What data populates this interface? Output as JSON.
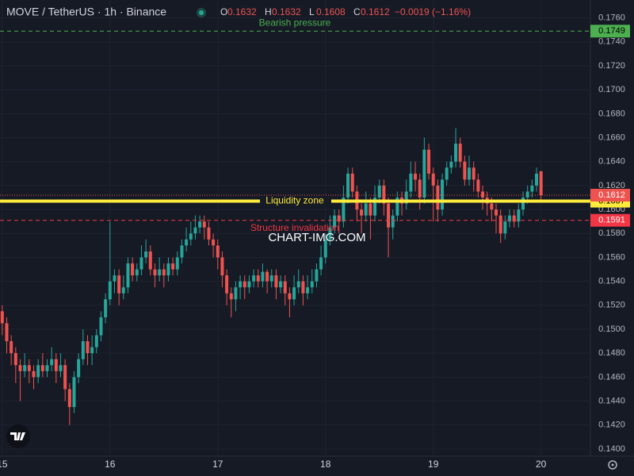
{
  "chart_data": {
    "type": "candlestick",
    "header": {
      "title": "MOVE / TetherUS · 1h · Binance",
      "ohlc_labels": [
        "O",
        "H",
        "L",
        "C"
      ],
      "change": "−0.0019 (−1.16%)"
    },
    "watermark": "CHART-IMG.COM",
    "up_color": "#26a69a",
    "down_color": "#ef5350",
    "grid": true,
    "xlim": [
      -0.5,
      131
    ],
    "ylim": [
      0.1394,
      0.1775
    ],
    "xticks": [
      {
        "value": 0,
        "label": "15"
      },
      {
        "value": 24,
        "label": "16"
      },
      {
        "value": 48,
        "label": "17"
      },
      {
        "value": 72,
        "label": "18"
      },
      {
        "value": 96,
        "label": "19"
      },
      {
        "value": 120,
        "label": "20"
      }
    ],
    "yticks": [
      {
        "value": 0.14,
        "label": "0.1400"
      },
      {
        "value": 0.142,
        "label": "0.1420"
      },
      {
        "value": 0.144,
        "label": "0.1440"
      },
      {
        "value": 0.146,
        "label": "0.1460"
      },
      {
        "value": 0.148,
        "label": "0.1480"
      },
      {
        "value": 0.15,
        "label": "0.1500"
      },
      {
        "value": 0.152,
        "label": "0.1520"
      },
      {
        "value": 0.154,
        "label": "0.1540"
      },
      {
        "value": 0.156,
        "label": "0.1560"
      },
      {
        "value": 0.158,
        "label": "0.1580"
      },
      {
        "value": 0.16,
        "label": "0.1600"
      },
      {
        "value": 0.162,
        "label": "0.1620"
      },
      {
        "value": 0.164,
        "label": "0.1640"
      },
      {
        "value": 0.166,
        "label": "0.1660"
      },
      {
        "value": 0.168,
        "label": "0.1680"
      },
      {
        "value": 0.17,
        "label": "0.1700"
      },
      {
        "value": 0.172,
        "label": "0.1720"
      },
      {
        "value": 0.174,
        "label": "0.1740"
      },
      {
        "value": 0.176,
        "label": "0.1760"
      }
    ],
    "levels": [
      {
        "label": "Bearish pressure",
        "value": 0.1749,
        "color": "#4caf50",
        "style": "dashed",
        "position": "above"
      },
      {
        "label": "Liquidity zone",
        "value": 0.1607,
        "color": "#ffeb3b",
        "style": "thick",
        "position": "on"
      },
      {
        "label": "Structure invalidation",
        "value": 0.1591,
        "color": "#f23645",
        "style": "dashed",
        "position": "below"
      }
    ],
    "open": [
      0.1515,
      0.1505,
      0.149,
      0.148,
      0.147,
      0.1465,
      0.147,
      0.1465,
      0.146,
      0.147,
      0.1465,
      0.147,
      0.1475,
      0.1465,
      0.147,
      0.145,
      0.1435,
      0.146,
      0.1475,
      0.149,
      0.148,
      0.1485,
      0.1495,
      0.151,
      0.1525,
      0.154,
      0.1545,
      0.153,
      0.1535,
      0.1555,
      0.1545,
      0.155,
      0.156,
      0.1565,
      0.155,
      0.1545,
      0.155,
      0.1545,
      0.1555,
      0.155,
      0.156,
      0.157,
      0.1575,
      0.158,
      0.1585,
      0.159,
      0.1585,
      0.1575,
      0.157,
      0.156,
      0.1545,
      0.153,
      0.1525,
      0.1535,
      0.154,
      0.1535,
      0.154,
      0.1545,
      0.154,
      0.1548,
      0.154,
      0.1545,
      0.1535,
      0.154,
      0.153,
      0.1525,
      0.1535,
      0.154,
      0.153,
      0.1535,
      0.154,
      0.155,
      0.156,
      0.1575,
      0.1585,
      0.1595,
      0.159,
      0.161,
      0.163,
      0.1615,
      0.16,
      0.1595,
      0.1605,
      0.1595,
      0.161,
      0.162,
      0.1605,
      0.1585,
      0.1595,
      0.161,
      0.1605,
      0.1615,
      0.163,
      0.1625,
      0.161,
      0.165,
      0.163,
      0.162,
      0.16,
      0.1625,
      0.1635,
      0.164,
      0.1655,
      0.164,
      0.1625,
      0.1635,
      0.1625,
      0.1615,
      0.161,
      0.1605,
      0.16,
      0.1595,
      0.158,
      0.159,
      0.1595,
      0.159,
      0.16,
      0.161,
      0.1615,
      0.162,
      0.1632
    ],
    "high": [
      0.152,
      0.151,
      0.1495,
      0.1485,
      0.1475,
      0.148,
      0.1475,
      0.147,
      0.1475,
      0.148,
      0.1475,
      0.1485,
      0.148,
      0.148,
      0.1475,
      0.1455,
      0.1465,
      0.148,
      0.15,
      0.1495,
      0.1495,
      0.15,
      0.1515,
      0.153,
      0.159,
      0.155,
      0.155,
      0.1545,
      0.156,
      0.156,
      0.1555,
      0.157,
      0.1575,
      0.157,
      0.1555,
      0.156,
      0.1555,
      0.156,
      0.156,
      0.1565,
      0.1575,
      0.1585,
      0.159,
      0.1595,
      0.1595,
      0.1595,
      0.159,
      0.158,
      0.1575,
      0.1565,
      0.155,
      0.1535,
      0.154,
      0.1545,
      0.1545,
      0.1545,
      0.155,
      0.155,
      0.1555,
      0.155,
      0.155,
      0.155,
      0.1545,
      0.1545,
      0.1535,
      0.1545,
      0.155,
      0.1545,
      0.1545,
      0.155,
      0.1555,
      0.157,
      0.158,
      0.1595,
      0.16,
      0.16,
      0.162,
      0.1635,
      0.1635,
      0.162,
      0.1605,
      0.1615,
      0.161,
      0.162,
      0.1625,
      0.1625,
      0.161,
      0.16,
      0.1615,
      0.1615,
      0.1625,
      0.164,
      0.164,
      0.163,
      0.166,
      0.1655,
      0.1635,
      0.1625,
      0.163,
      0.164,
      0.1645,
      0.1668,
      0.166,
      0.1645,
      0.1645,
      0.164,
      0.163,
      0.162,
      0.1615,
      0.161,
      0.1605,
      0.16,
      0.1595,
      0.16,
      0.16,
      0.1605,
      0.1615,
      0.162,
      0.1625,
      0.1635,
      0.1632
    ],
    "low": [
      0.1495,
      0.148,
      0.147,
      0.1455,
      0.144,
      0.146,
      0.1455,
      0.145,
      0.1455,
      0.146,
      0.146,
      0.1465,
      0.1455,
      0.146,
      0.144,
      0.142,
      0.143,
      0.1455,
      0.147,
      0.147,
      0.147,
      0.148,
      0.149,
      0.1505,
      0.152,
      0.153,
      0.152,
      0.1525,
      0.153,
      0.154,
      0.154,
      0.1545,
      0.1555,
      0.1545,
      0.1535,
      0.154,
      0.1535,
      0.154,
      0.1545,
      0.1545,
      0.1555,
      0.1565,
      0.157,
      0.1575,
      0.158,
      0.1575,
      0.157,
      0.156,
      0.155,
      0.1535,
      0.152,
      0.151,
      0.1515,
      0.1525,
      0.1525,
      0.153,
      0.1535,
      0.1535,
      0.1535,
      0.153,
      0.1535,
      0.1525,
      0.153,
      0.152,
      0.151,
      0.152,
      0.153,
      0.152,
      0.1525,
      0.153,
      0.1535,
      0.1545,
      0.1555,
      0.157,
      0.158,
      0.158,
      0.1585,
      0.1605,
      0.161,
      0.159,
      0.158,
      0.159,
      0.1575,
      0.159,
      0.1605,
      0.1595,
      0.156,
      0.1575,
      0.159,
      0.1595,
      0.16,
      0.161,
      0.1615,
      0.16,
      0.1605,
      0.1625,
      0.159,
      0.159,
      0.1595,
      0.162,
      0.163,
      0.1635,
      0.1635,
      0.162,
      0.162,
      0.1615,
      0.161,
      0.16,
      0.1595,
      0.159,
      0.158,
      0.1572,
      0.1575,
      0.1585,
      0.1585,
      0.1585,
      0.1595,
      0.1605,
      0.161,
      0.1615,
      0.1608
    ],
    "close": [
      0.1505,
      0.149,
      0.148,
      0.147,
      0.1465,
      0.147,
      0.1465,
      0.146,
      0.147,
      0.1465,
      0.147,
      0.1475,
      0.1465,
      0.147,
      0.145,
      0.1435,
      0.146,
      0.1475,
      0.149,
      0.148,
      0.1485,
      0.1495,
      0.151,
      0.1525,
      0.154,
      0.1545,
      0.153,
      0.1535,
      0.1555,
      0.1545,
      0.155,
      0.156,
      0.1565,
      0.155,
      0.1545,
      0.155,
      0.1545,
      0.1555,
      0.155,
      0.156,
      0.157,
      0.1575,
      0.158,
      0.1585,
      0.159,
      0.1585,
      0.1575,
      0.157,
      0.156,
      0.1545,
      0.153,
      0.1525,
      0.1535,
      0.154,
      0.1535,
      0.154,
      0.1545,
      0.154,
      0.1548,
      0.154,
      0.1545,
      0.1535,
      0.154,
      0.153,
      0.1525,
      0.1535,
      0.154,
      0.153,
      0.1535,
      0.154,
      0.155,
      0.156,
      0.1575,
      0.1585,
      0.1595,
      0.159,
      0.161,
      0.163,
      0.1615,
      0.16,
      0.1595,
      0.1605,
      0.1595,
      0.161,
      0.162,
      0.1605,
      0.1585,
      0.1595,
      0.161,
      0.1605,
      0.1615,
      0.163,
      0.1625,
      0.161,
      0.165,
      0.163,
      0.162,
      0.16,
      0.1625,
      0.1635,
      0.164,
      0.1655,
      0.164,
      0.1625,
      0.1635,
      0.1625,
      0.1615,
      0.161,
      0.1605,
      0.16,
      0.1595,
      0.158,
      0.159,
      0.1595,
      0.159,
      0.16,
      0.161,
      0.1615,
      0.162,
      0.163,
      0.1612
    ]
  }
}
